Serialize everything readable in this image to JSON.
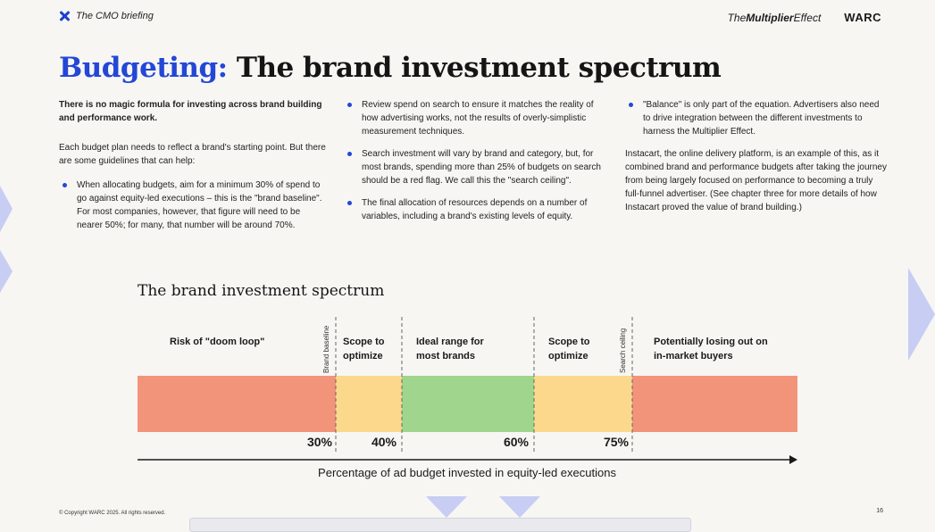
{
  "header": {
    "briefing": "The CMO briefing",
    "partner_bold": "The",
    "partner_bold2": "Multiplier",
    "partner_italic": "Effect",
    "warc": "WARC"
  },
  "title": {
    "accent": "Budgeting:",
    "rest": "The brand investment spectrum"
  },
  "col1": {
    "lead": "There is no magic formula for investing across brand building and performance work.",
    "intro": "Each budget plan needs to reflect a brand's starting point. But there are some guidelines that can help:",
    "bullets": [
      "When allocating budgets, aim for a minimum 30% of spend to go against equity-led executions – this is the \"brand baseline\". For most companies, however, that figure will need to be nearer 50%; for many, that number will be around 70%."
    ]
  },
  "col2": {
    "bullets": [
      "Review spend on search to ensure it matches the reality of how advertising works, not the results of overly-simplistic measurement techniques.",
      "Search investment will vary by brand and category, but, for most brands, spending more than 25% of budgets on search should be a red flag. We call this the \"search ceiling\".",
      "The final allocation of resources depends on a number of variables, including a brand's existing levels of equity."
    ]
  },
  "col3": {
    "bullets": [
      "\"Balance\" is only part of the equation. Advertisers also need to drive integration between the different investments to harness the Multiplier Effect."
    ],
    "para": "Instacart, the online delivery platform, is an example of this, as it combined brand and performance budgets after taking the journey from being largely focused on performance to becoming a truly full-funnel advertiser. (See chapter three for more details of how Instacart proved the value of brand building.)"
  },
  "chart_data": {
    "type": "bar",
    "title": "The brand investment spectrum",
    "xlabel": "Percentage of ad budget invested in equity-led executions",
    "segments": [
      {
        "label": "Risk of \"doom loop\"",
        "color": "#f2947a"
      },
      {
        "label": "Scope to optimize",
        "color": "#fbd88c"
      },
      {
        "label": "Ideal range for most brands",
        "color": "#9fd58c"
      },
      {
        "label": "Scope to optimize",
        "color": "#fbd88c"
      },
      {
        "label": "Potentially losing out on in-market buyers",
        "color": "#f2947a"
      }
    ],
    "boundaries": [
      30,
      40,
      60,
      75
    ],
    "tick_labels": [
      "30%",
      "40%",
      "60%",
      "75%"
    ],
    "markers": [
      {
        "value": 30,
        "label": "Brand baseline"
      },
      {
        "value": 75,
        "label": "Search ceiling"
      }
    ]
  },
  "footer": {
    "copyright": "© Copyright WARC 2025. All rights reserved.",
    "page": "16"
  }
}
